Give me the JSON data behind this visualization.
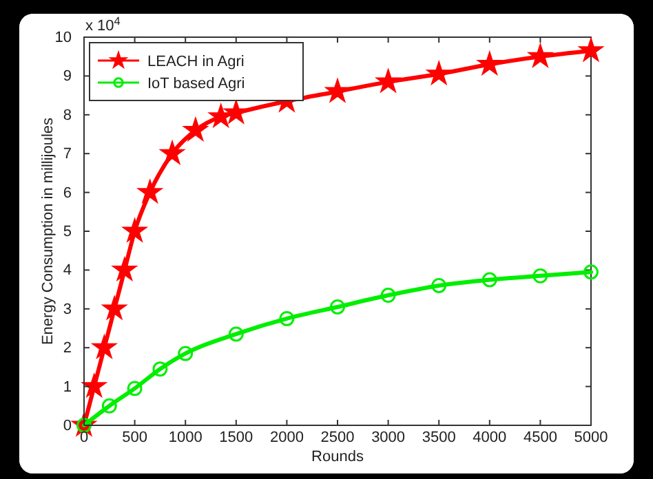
{
  "chart_data": {
    "type": "line",
    "xlabel": "Rounds",
    "ylabel": "Energy Consumption in millijoules",
    "annotations": [
      "x 10$^{4}$"
    ],
    "xlim": [
      0,
      5000
    ],
    "xticks": [
      0,
      500,
      1000,
      1500,
      2000,
      2500,
      3000,
      3500,
      4000,
      4500,
      5000
    ],
    "ylim": [
      0,
      10
    ],
    "yticks": [
      0,
      1,
      2,
      3,
      4,
      5,
      6,
      7,
      8,
      9,
      10
    ],
    "legend": "top left",
    "grid": false,
    "series": [
      {
        "name": "LEACH in Agri",
        "color": "#ff0000",
        "marker": "star",
        "x": [
          0,
          100,
          200,
          300,
          400,
          500,
          650,
          870,
          1100,
          1350,
          1500,
          2000,
          2500,
          3000,
          3500,
          4000,
          4500,
          5000
        ],
        "values": [
          0,
          1,
          2,
          3,
          4,
          5,
          6,
          7,
          7.6,
          7.95,
          8.05,
          8.35,
          8.6,
          8.85,
          9.05,
          9.3,
          9.5,
          9.65
        ]
      },
      {
        "name": "IoT based Agri",
        "color": "#00ee00",
        "marker": "circle",
        "x": [
          0,
          250,
          500,
          750,
          1000,
          1500,
          2000,
          2500,
          3000,
          3500,
          4000,
          4500,
          5000
        ],
        "values": [
          0,
          0.5,
          0.95,
          1.45,
          1.85,
          2.35,
          2.75,
          3.05,
          3.35,
          3.6,
          3.75,
          3.85,
          3.95
        ]
      }
    ]
  }
}
